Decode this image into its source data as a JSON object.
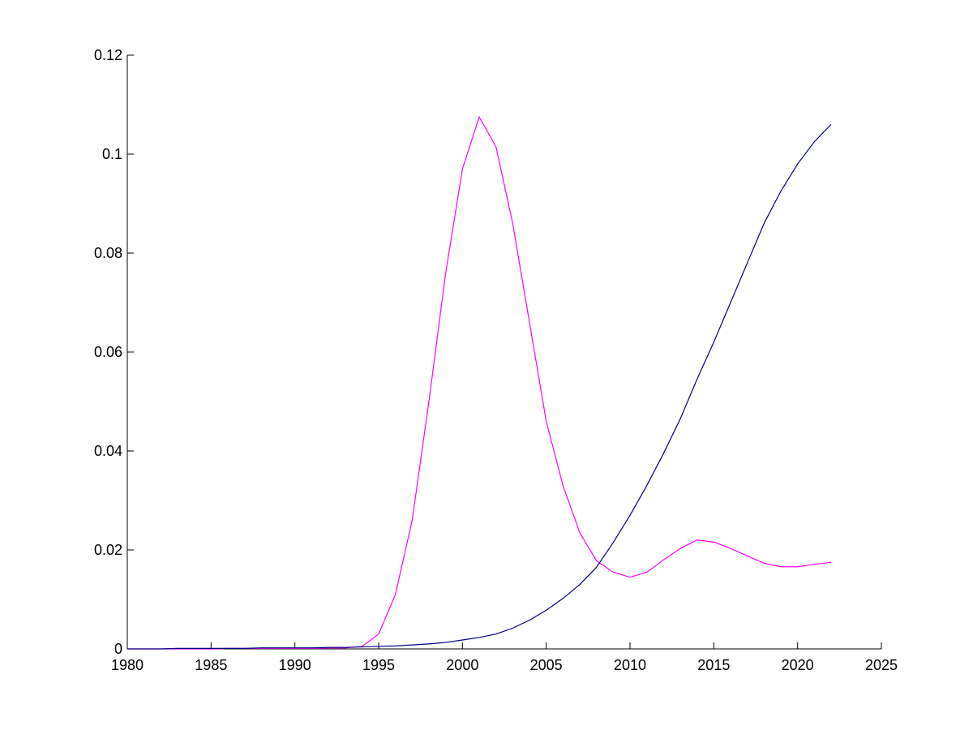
{
  "chart_data": {
    "type": "line",
    "x": [
      1980,
      1981,
      1982,
      1983,
      1984,
      1985,
      1986,
      1987,
      1988,
      1989,
      1990,
      1991,
      1992,
      1993,
      1994,
      1995,
      1996,
      1997,
      1998,
      1999,
      2000,
      2001,
      2002,
      2003,
      2004,
      2005,
      2006,
      2007,
      2008,
      2009,
      2010,
      2011,
      2012,
      2013,
      2014,
      2015,
      2016,
      2017,
      2018,
      2019,
      2020,
      2021,
      2022
    ],
    "series": [
      {
        "color": "#ff00ff",
        "values": [
          0,
          0,
          0,
          0,
          0,
          0,
          0.0001,
          0.0001,
          0.0001,
          0.0001,
          0.0001,
          0.0001,
          0.0002,
          0.0002,
          0.0005,
          0.003,
          0.011,
          0.026,
          0.05,
          0.076,
          0.097,
          0.1075,
          0.1015,
          0.086,
          0.066,
          0.046,
          0.033,
          0.0235,
          0.0178,
          0.0155,
          0.0145,
          0.0155,
          0.018,
          0.0203,
          0.022,
          0.0216,
          0.0203,
          0.0188,
          0.0173,
          0.0166,
          0.0166,
          0.0171,
          0.0175
        ]
      },
      {
        "color": "#000080",
        "values": [
          0,
          0,
          0,
          0.0001,
          0.0001,
          0.0001,
          0.0001,
          0.0001,
          0.0002,
          0.0002,
          0.0002,
          0.0002,
          0.0003,
          0.0003,
          0.0004,
          0.0005,
          0.0006,
          0.0008,
          0.001,
          0.0013,
          0.0018,
          0.0023,
          0.003,
          0.0042,
          0.0058,
          0.0078,
          0.0102,
          0.013,
          0.0165,
          0.0215,
          0.027,
          0.033,
          0.0395,
          0.0465,
          0.0545,
          0.062,
          0.07,
          0.078,
          0.086,
          0.0925,
          0.098,
          0.1025,
          0.106
        ]
      }
    ],
    "xlim": [
      1980,
      2025
    ],
    "xticks": [
      1980,
      1985,
      1990,
      1995,
      2000,
      2005,
      2010,
      2015,
      2020,
      2025
    ],
    "ylim": [
      0,
      0.12
    ],
    "yticks": [
      0,
      0.02,
      0.04,
      0.06,
      0.08,
      0.1,
      0.12
    ],
    "grid": false
  }
}
